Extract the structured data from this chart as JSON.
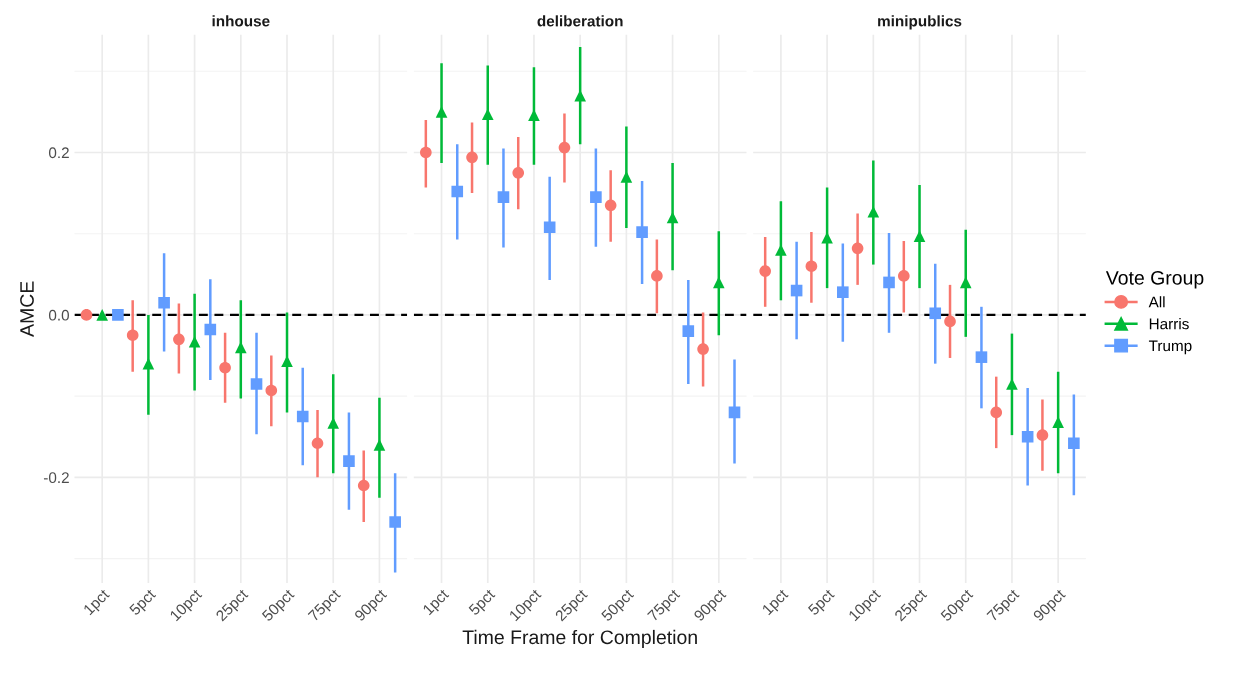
{
  "chart_data": [
    {
      "type": "scatter",
      "title": "inhouse",
      "ylabel": "AMCE",
      "legend": "right",
      "legend_title": "Vote Group",
      "categories": [
        "1pct",
        "5pct",
        "10pct",
        "25pct",
        "50pct",
        "75pct",
        "90pct"
      ],
      "ylim": [
        -0.33,
        0.345
      ],
      "yticks": [
        {
          "value": -0.2,
          "label": "-0.2"
        },
        {
          "value": 0,
          "label": "0.0"
        },
        {
          "value": 0.2,
          "label": "0.2"
        }
      ],
      "grid": true,
      "ref_lines": [
        {
          "axis": "y",
          "value": 0,
          "color": "#000000",
          "line_style": "dashed"
        }
      ],
      "series": [
        {
          "name": "All",
          "color": "#f8766d",
          "marker": "circle",
          "values": [
            0,
            -0.025,
            -0.03,
            -0.065,
            -0.093,
            -0.158,
            -0.21
          ],
          "errors": [
            null,
            [
              -0.07,
              0.018
            ],
            [
              -0.072,
              0.014
            ],
            [
              -0.108,
              -0.022
            ],
            [
              -0.137,
              -0.05
            ],
            [
              -0.2,
              -0.117
            ],
            [
              -0.255,
              -0.167
            ]
          ]
        },
        {
          "name": "Harris",
          "color": "#00ba38",
          "marker": "triangle",
          "values": [
            0,
            -0.06,
            -0.033,
            -0.04,
            -0.057,
            -0.133,
            -0.16
          ],
          "errors": [
            null,
            [
              -0.123,
              0
            ],
            [
              -0.093,
              0.026
            ],
            [
              -0.103,
              0.018
            ],
            [
              -0.12,
              0.003
            ],
            [
              -0.195,
              -0.073
            ],
            [
              -0.225,
              -0.102
            ]
          ]
        },
        {
          "name": "Trump",
          "color": "#619cff",
          "marker": "square",
          "values": [
            0,
            0.015,
            -0.018,
            -0.085,
            -0.125,
            -0.18,
            -0.255
          ],
          "errors": [
            null,
            [
              -0.045,
              0.076
            ],
            [
              -0.08,
              0.044
            ],
            [
              -0.147,
              -0.022
            ],
            [
              -0.185,
              -0.065
            ],
            [
              -0.24,
              -0.12
            ],
            [
              -0.317,
              -0.195
            ]
          ]
        }
      ]
    },
    {
      "type": "scatter",
      "title": "deliberation",
      "xlabel": "Time Frame for Completion",
      "categories": [
        "1pct",
        "5pct",
        "10pct",
        "25pct",
        "50pct",
        "75pct",
        "90pct"
      ],
      "ylim": [
        -0.33,
        0.345
      ],
      "tick_labels": "x",
      "grid": true,
      "ref_lines": [
        {
          "axis": "y",
          "value": 0,
          "color": "#000000",
          "line_style": "dashed"
        }
      ],
      "series": [
        {
          "color": "#f8766d",
          "marker": "circle",
          "values": [
            0.2,
            0.194,
            0.175,
            0.206,
            0.135,
            0.048,
            -0.042
          ],
          "errors": [
            [
              0.157,
              0.24
            ],
            [
              0.15,
              0.237
            ],
            [
              0.13,
              0.219
            ],
            [
              0.163,
              0.248
            ],
            [
              0.09,
              0.178
            ],
            [
              0.002,
              0.093
            ],
            [
              -0.088,
              0.003
            ]
          ]
        },
        {
          "color": "#00ba38",
          "marker": "triangle",
          "values": [
            0.25,
            0.247,
            0.246,
            0.27,
            0.17,
            0.12,
            0.04
          ],
          "errors": [
            [
              0.187,
              0.31
            ],
            [
              0.185,
              0.307
            ],
            [
              0.185,
              0.305
            ],
            [
              0.21,
              0.33
            ],
            [
              0.107,
              0.232
            ],
            [
              0.055,
              0.187
            ],
            [
              -0.025,
              0.103
            ]
          ]
        },
        {
          "color": "#619cff",
          "marker": "square",
          "values": [
            0.152,
            0.145,
            0.108,
            0.145,
            0.102,
            -0.02,
            -0.12
          ],
          "errors": [
            [
              0.093,
              0.21
            ],
            [
              0.083,
              0.205
            ],
            [
              0.043,
              0.17
            ],
            [
              0.084,
              0.205
            ],
            [
              0.038,
              0.165
            ],
            [
              -0.085,
              0.043
            ],
            [
              -0.183,
              -0.055
            ]
          ]
        }
      ]
    },
    {
      "type": "scatter",
      "title": "minipublics",
      "categories": [
        "1pct",
        "5pct",
        "10pct",
        "25pct",
        "50pct",
        "75pct",
        "90pct"
      ],
      "ylim": [
        -0.33,
        0.345
      ],
      "tick_labels": "x",
      "grid": true,
      "ref_lines": [
        {
          "axis": "y",
          "value": 0,
          "color": "#000000",
          "line_style": "dashed"
        }
      ],
      "series": [
        {
          "color": "#f8766d",
          "marker": "circle",
          "values": [
            0.054,
            0.06,
            0.082,
            0.048,
            -0.008,
            -0.12,
            -0.148
          ],
          "errors": [
            [
              0.01,
              0.096
            ],
            [
              0.015,
              0.102
            ],
            [
              0.037,
              0.125
            ],
            [
              0.003,
              0.091
            ],
            [
              -0.053,
              0.037
            ],
            [
              -0.164,
              -0.076
            ],
            [
              -0.192,
              -0.104
            ]
          ]
        },
        {
          "color": "#00ba38",
          "marker": "triangle",
          "values": [
            0.08,
            0.095,
            0.127,
            0.097,
            0.04,
            -0.085,
            -0.132
          ],
          "errors": [
            [
              0.018,
              0.14
            ],
            [
              0.033,
              0.157
            ],
            [
              0.062,
              0.19
            ],
            [
              0.033,
              0.16
            ],
            [
              -0.027,
              0.105
            ],
            [
              -0.148,
              -0.023
            ],
            [
              -0.195,
              -0.07
            ]
          ]
        },
        {
          "color": "#619cff",
          "marker": "square",
          "values": [
            0.03,
            0.028,
            0.04,
            0.002,
            -0.052,
            -0.15,
            -0.158
          ],
          "errors": [
            [
              -0.03,
              0.09
            ],
            [
              -0.033,
              0.088
            ],
            [
              -0.022,
              0.101
            ],
            [
              -0.06,
              0.063
            ],
            [
              -0.115,
              0.01
            ],
            [
              -0.21,
              -0.09
            ],
            [
              -0.222,
              -0.098
            ]
          ]
        }
      ]
    }
  ]
}
